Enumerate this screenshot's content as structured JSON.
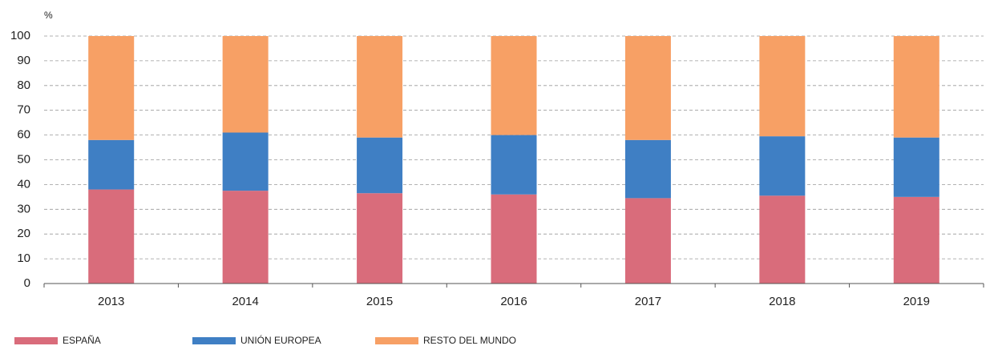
{
  "chart_data": {
    "type": "stacked_bar",
    "y_label": "%",
    "categories": [
      "2013",
      "2014",
      "2015",
      "2016",
      "2017",
      "2018",
      "2019"
    ],
    "series": [
      {
        "name": "ESPAÑA",
        "color": "#d96c7b",
        "values": [
          38,
          37.5,
          36.5,
          36,
          34.5,
          35.5,
          35
        ]
      },
      {
        "name": "UNIÓN EUROPEA",
        "color": "#3f7fc4",
        "values": [
          20,
          23.5,
          22.5,
          24,
          23.5,
          24,
          24
        ]
      },
      {
        "name": "RESTO DEL MUNDO",
        "color": "#f7a065",
        "values": [
          42,
          39,
          41,
          40,
          42,
          40.5,
          41
        ]
      }
    ],
    "ylim": [
      0,
      100
    ],
    "yticks": [
      0,
      10,
      20,
      30,
      40,
      50,
      60,
      70,
      80,
      90,
      100
    ],
    "grid": true,
    "legend": "bottom-left"
  }
}
